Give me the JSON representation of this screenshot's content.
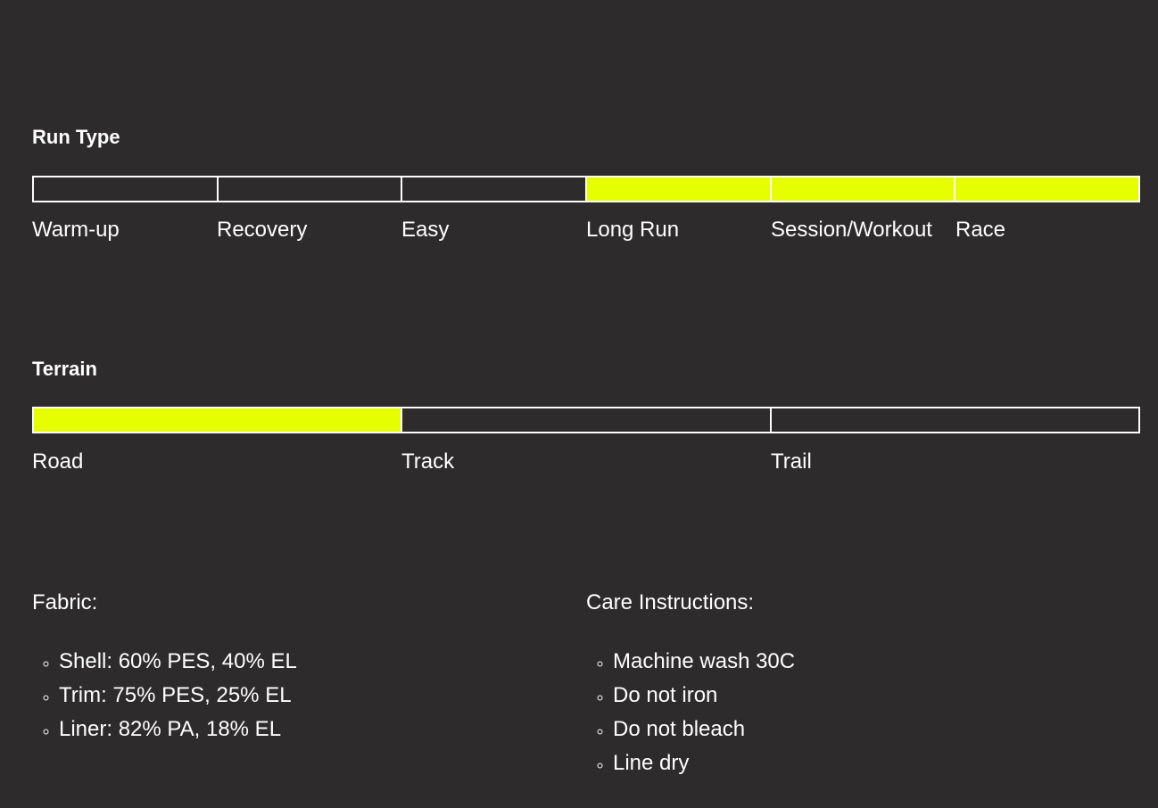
{
  "run_type": {
    "title": "Run Type",
    "options": [
      {
        "label": "Warm-up",
        "selected": false
      },
      {
        "label": "Recovery",
        "selected": false
      },
      {
        "label": "Easy",
        "selected": false
      },
      {
        "label": "Long Run",
        "selected": true
      },
      {
        "label": "Session/Workout",
        "selected": true
      },
      {
        "label": "Race",
        "selected": true
      }
    ]
  },
  "terrain": {
    "title": "Terrain",
    "options": [
      {
        "label": "Road",
        "selected": true
      },
      {
        "label": "Track",
        "selected": false
      },
      {
        "label": "Trail",
        "selected": false
      }
    ]
  },
  "fabric": {
    "title": "Fabric:",
    "items": [
      "Shell: 60% PES, 40% EL",
      "Trim: 75% PES, 25% EL",
      "Liner: 82% PA, 18% EL"
    ]
  },
  "care": {
    "title": "Care Instructions:",
    "items": [
      "Machine wash 30C",
      "Do not iron",
      "Do not bleach",
      "Line dry"
    ]
  },
  "highlight_color": "#e5ff00"
}
